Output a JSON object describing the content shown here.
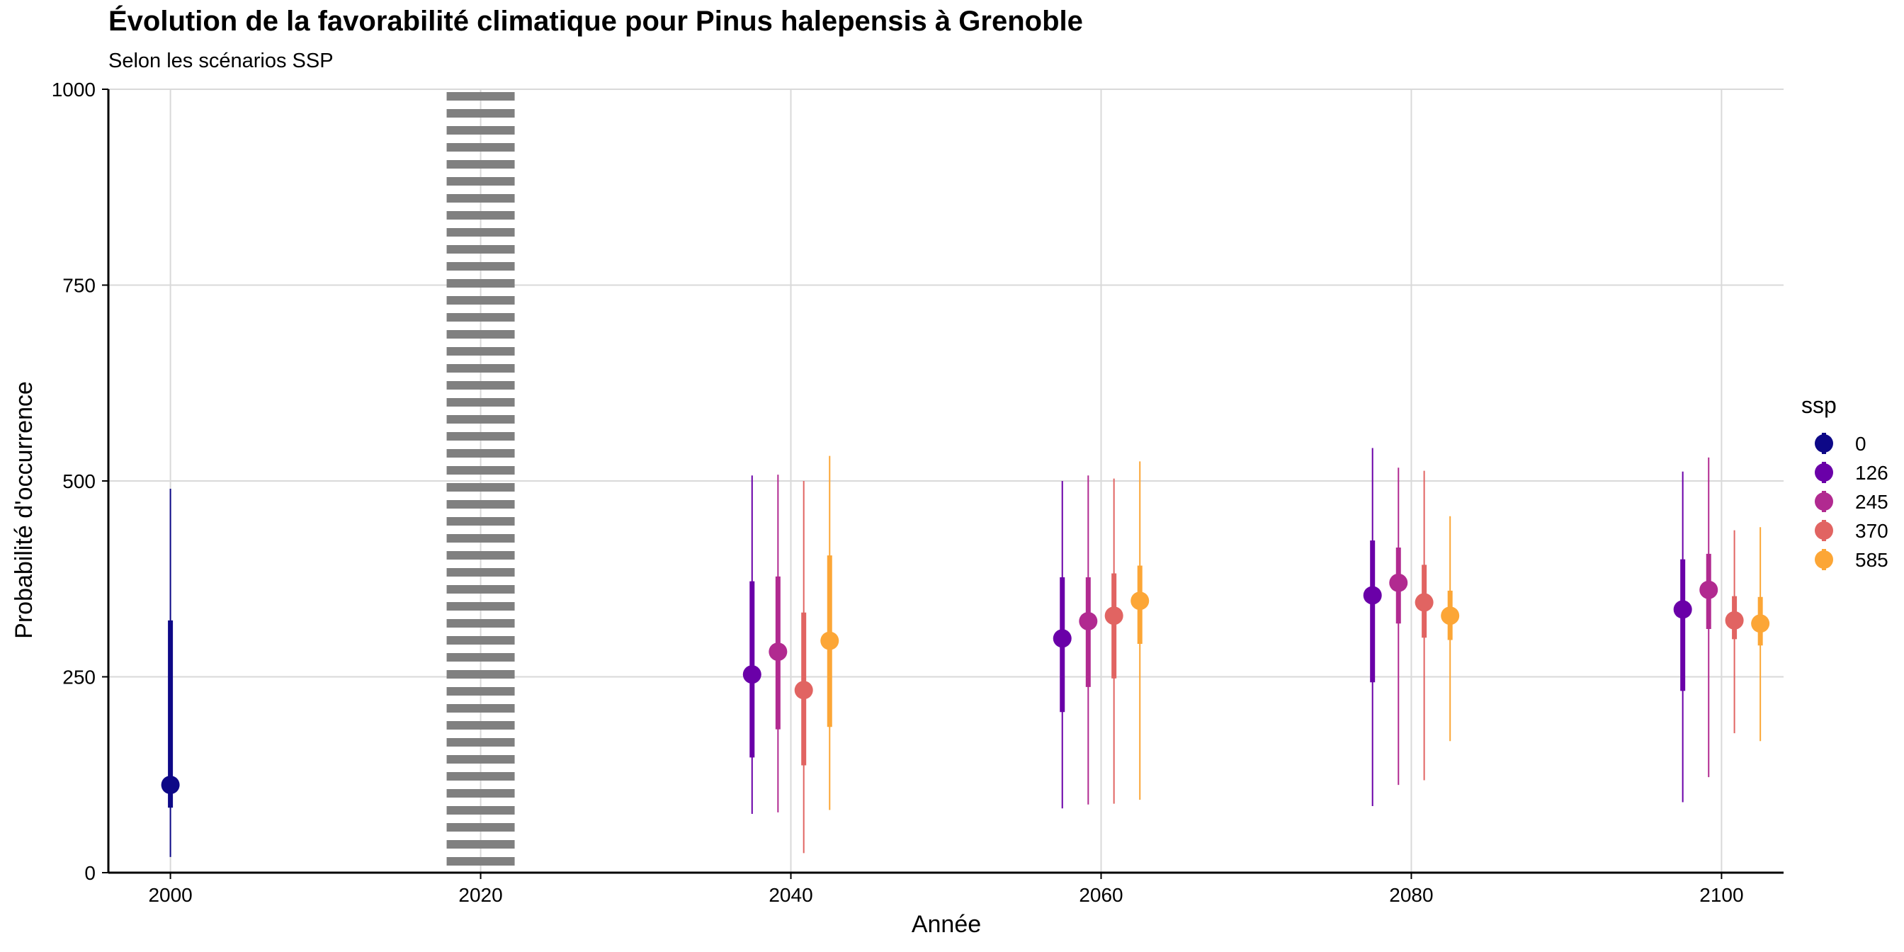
{
  "chart_data": {
    "type": "pointrange",
    "title": "Évolution de la favorabilité climatique pour Pinus halepensis à Grenoble",
    "subtitle": "Selon les scénarios SSP",
    "xlabel": "Année",
    "ylabel": "Probabilité d'occurrence",
    "xlim": [
      1996,
      2104
    ],
    "ylim": [
      0,
      1000
    ],
    "x_ticks": [
      2000,
      2020,
      2040,
      2060,
      2080,
      2100
    ],
    "y_ticks": [
      0,
      250,
      500,
      750,
      1000
    ],
    "grid": true,
    "reference_line": {
      "x": 2020,
      "style": "dotted"
    },
    "legend": {
      "title": "ssp",
      "position": "right"
    },
    "series": [
      {
        "name": "0",
        "color": "#0D0887",
        "points": [
          {
            "x": 2000,
            "y": 112,
            "inner": [
              83,
              322
            ],
            "outer": [
              20,
              490
            ]
          }
        ]
      },
      {
        "name": "126",
        "color": "#6A00A8",
        "points": [
          {
            "x": 2040,
            "y": 253,
            "inner": [
              147,
              372
            ],
            "outer": [
              75,
              507
            ]
          },
          {
            "x": 2060,
            "y": 299,
            "inner": [
              205,
              377
            ],
            "outer": [
              82,
              500
            ]
          },
          {
            "x": 2080,
            "y": 354,
            "inner": [
              243,
              424
            ],
            "outer": [
              85,
              542
            ]
          },
          {
            "x": 2100,
            "y": 336,
            "inner": [
              232,
              400
            ],
            "outer": [
              90,
              512
            ]
          }
        ]
      },
      {
        "name": "245",
        "color": "#B12A90",
        "points": [
          {
            "x": 2040,
            "y": 282,
            "inner": [
              183,
              378
            ],
            "outer": [
              77,
              508
            ]
          },
          {
            "x": 2060,
            "y": 321,
            "inner": [
              237,
              377
            ],
            "outer": [
              87,
              507
            ]
          },
          {
            "x": 2080,
            "y": 370,
            "inner": [
              318,
              415
            ],
            "outer": [
              112,
              517
            ]
          },
          {
            "x": 2100,
            "y": 361,
            "inner": [
              311,
              407
            ],
            "outer": [
              122,
              530
            ]
          }
        ]
      },
      {
        "name": "370",
        "color": "#E16462",
        "points": [
          {
            "x": 2040,
            "y": 233,
            "inner": [
              137,
              332
            ],
            "outer": [
              25,
              500
            ]
          },
          {
            "x": 2060,
            "y": 328,
            "inner": [
              248,
              382
            ],
            "outer": [
              88,
              503
            ]
          },
          {
            "x": 2080,
            "y": 345,
            "inner": [
              300,
              393
            ],
            "outer": [
              118,
              513
            ]
          },
          {
            "x": 2100,
            "y": 322,
            "inner": [
              298,
              353
            ],
            "outer": [
              178,
              437
            ]
          }
        ]
      },
      {
        "name": "585",
        "color": "#FCA636",
        "points": [
          {
            "x": 2040,
            "y": 296,
            "inner": [
              186,
              405
            ],
            "outer": [
              80,
              532
            ]
          },
          {
            "x": 2060,
            "y": 347,
            "inner": [
              292,
              392
            ],
            "outer": [
              93,
              525
            ]
          },
          {
            "x": 2080,
            "y": 328,
            "inner": [
              297,
              360
            ],
            "outer": [
              168,
              455
            ]
          },
          {
            "x": 2100,
            "y": 318,
            "inner": [
              290,
              352
            ],
            "outer": [
              168,
              441
            ]
          }
        ]
      }
    ]
  }
}
